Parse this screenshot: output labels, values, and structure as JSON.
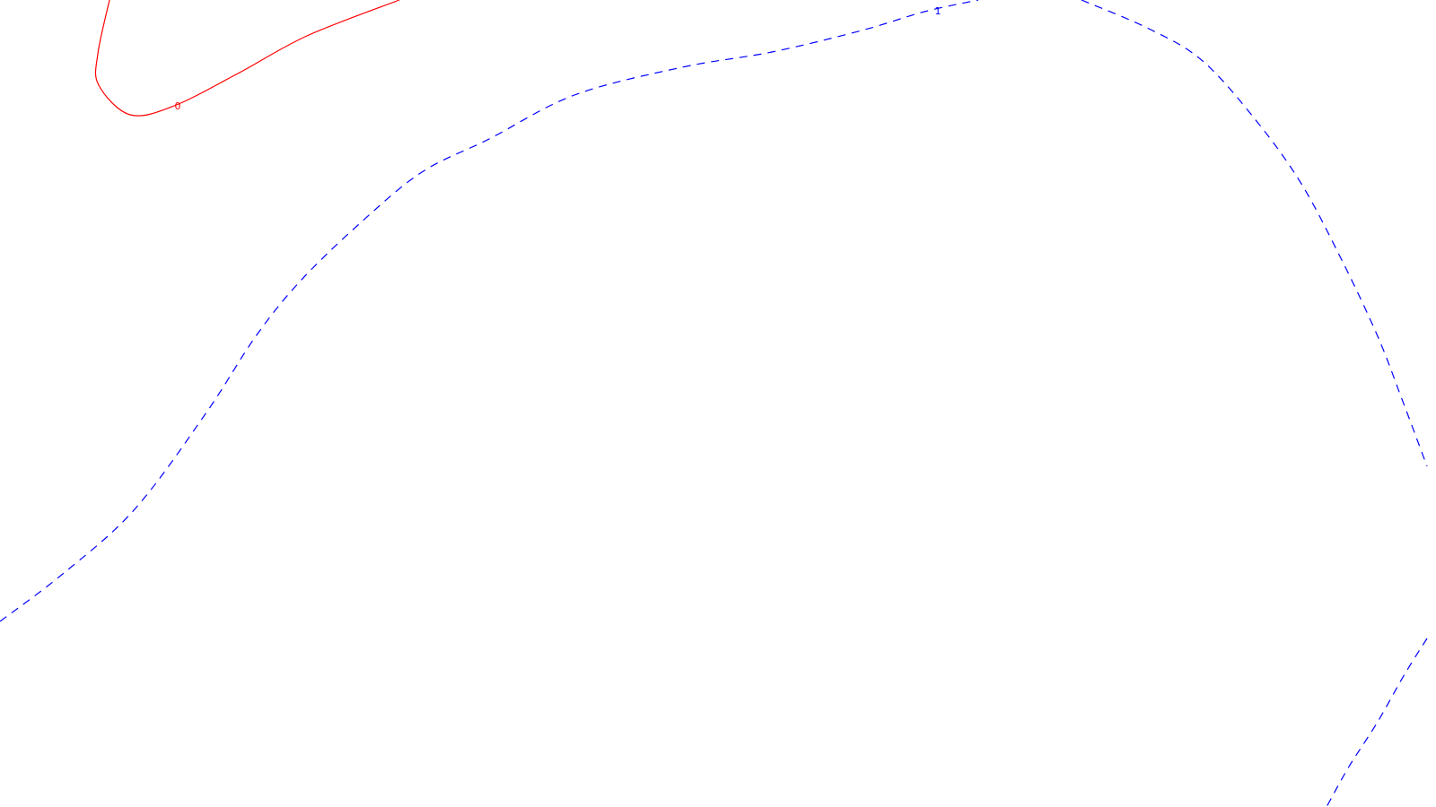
{
  "chart_data": {
    "type": "contour",
    "grid": false,
    "contours": [
      {
        "level_label": "0",
        "color": "#ff0000",
        "line_style": "solid",
        "segments": [
          [
            [
              122,
              0
            ],
            [
              109,
              60
            ],
            [
              110,
              95
            ],
            [
              145,
              128
            ],
            [
              194,
              118
            ],
            [
              265,
              82
            ],
            [
              342,
              40
            ],
            [
              445,
              0
            ]
          ]
        ]
      },
      {
        "level_label": "1",
        "color": "#0000ff",
        "line_style": "dashed",
        "segments": [
          [
            [
              0,
              693
            ],
            [
              70,
              640
            ],
            [
              150,
              568
            ],
            [
              230,
              460
            ],
            [
              285,
              375
            ],
            [
              335,
              313
            ],
            [
              400,
              250
            ],
            [
              470,
              192
            ],
            [
              545,
              155
            ],
            [
              640,
              106
            ],
            [
              760,
              75
            ],
            [
              860,
              58
            ],
            [
              960,
              34
            ],
            [
              1030,
              13
            ],
            [
              1090,
              0
            ]
          ],
          [
            [
              1205,
              0
            ],
            [
              1280,
              32
            ],
            [
              1340,
              68
            ],
            [
              1400,
              135
            ],
            [
              1450,
              205
            ],
            [
              1495,
              290
            ],
            [
              1535,
              375
            ],
            [
              1562,
              445
            ],
            [
              1590,
              520
            ]
          ],
          [
            [
              1590,
              712
            ],
            [
              1565,
              752
            ],
            [
              1535,
              805
            ],
            [
              1503,
              855
            ],
            [
              1478,
              900
            ]
          ]
        ]
      }
    ]
  }
}
